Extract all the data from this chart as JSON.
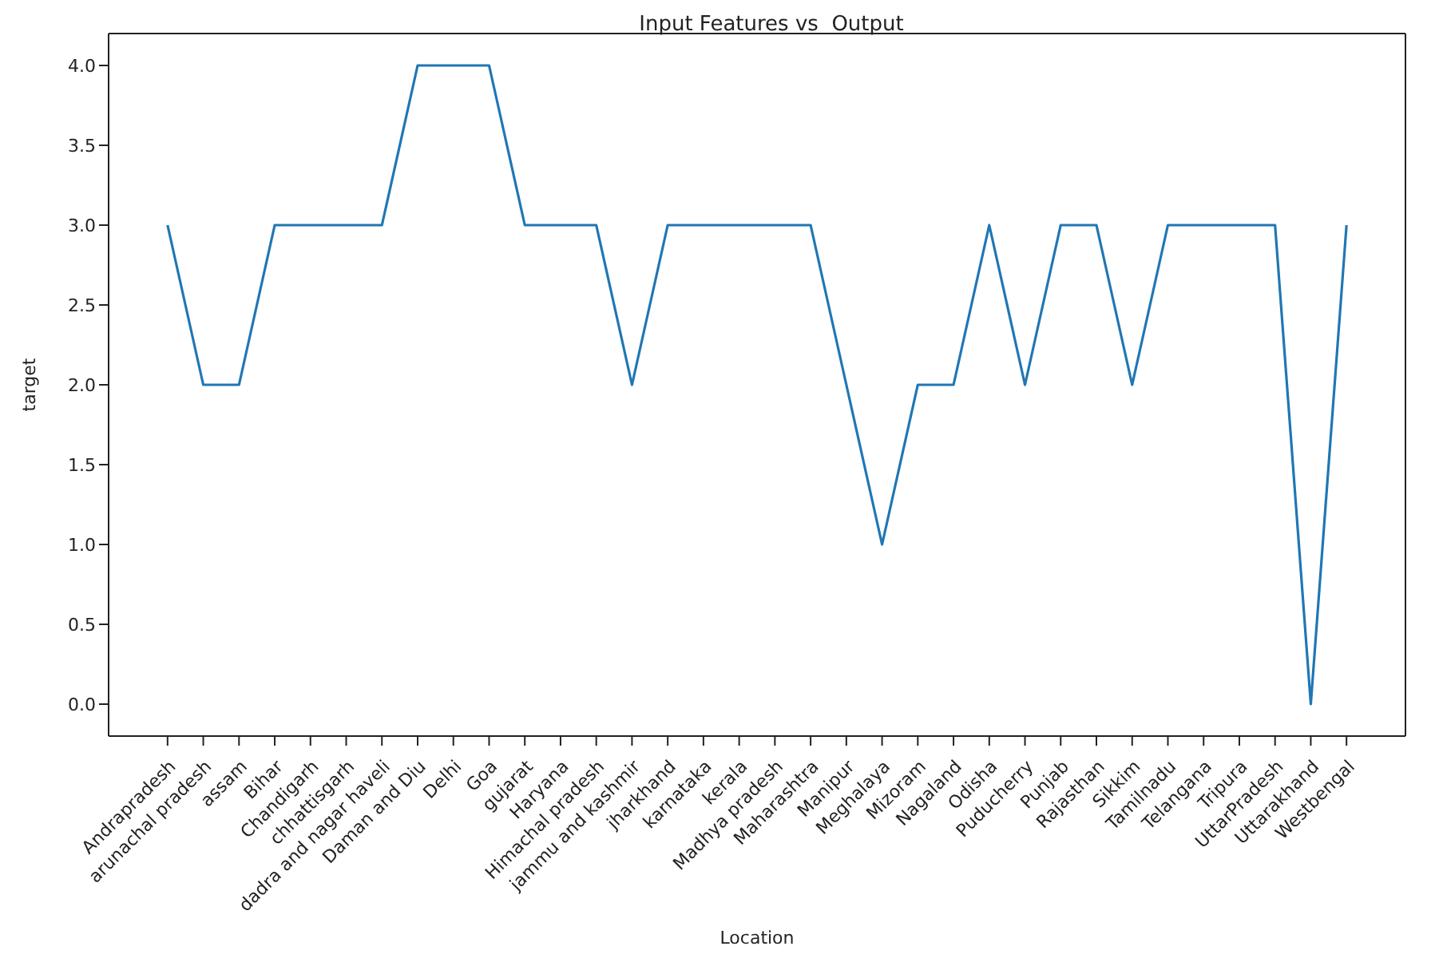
{
  "chart_data": {
    "type": "line",
    "title": "Input Features vs  Output",
    "xlabel": "Location",
    "ylabel": "target",
    "categories": [
      "Andrapradesh",
      "arunachal pradesh",
      "assam",
      "Bihar",
      "Chandigarh",
      "chhattisgarh",
      "dadra and nagar haveli",
      "Daman and Diu",
      "Delhi",
      "Goa",
      "gujarat",
      "Haryana",
      "Himachal pradesh",
      "jammu and kashmir",
      "jharkhand",
      "karnataka",
      "kerala",
      "Madhya pradesh",
      "Maharashtra",
      "Manipur",
      "Meghalaya",
      "Mizoram",
      "Nagaland",
      "Odisha",
      "Puducherry",
      "Punjab",
      "Rajasthan",
      "Sikkim",
      "Tamilnadu",
      "Telangana",
      "Tripura",
      "UttarPradesh",
      "Uttarakhand",
      "Westbengal"
    ],
    "series": [
      {
        "color": "#1f77b4",
        "values": [
          3,
          2,
          2,
          3,
          3,
          3,
          3,
          4,
          4,
          4,
          3,
          3,
          3,
          2,
          3,
          3,
          3,
          3,
          3,
          2,
          1,
          2,
          2,
          3,
          2,
          3,
          3,
          2,
          3,
          3,
          3,
          3,
          0,
          3
        ]
      }
    ],
    "ylim": [
      -0.2,
      4.2
    ],
    "yticks": [
      {
        "value": 0,
        "label": "0.0"
      },
      0.5,
      {
        "value": 1,
        "label": "1.0"
      },
      1.5,
      {
        "value": 2,
        "label": "2.0"
      },
      2.5,
      {
        "value": 3,
        "label": "3.0"
      },
      3.5,
      {
        "value": 4,
        "label": "4.0"
      }
    ],
    "line_style": "solid"
  }
}
